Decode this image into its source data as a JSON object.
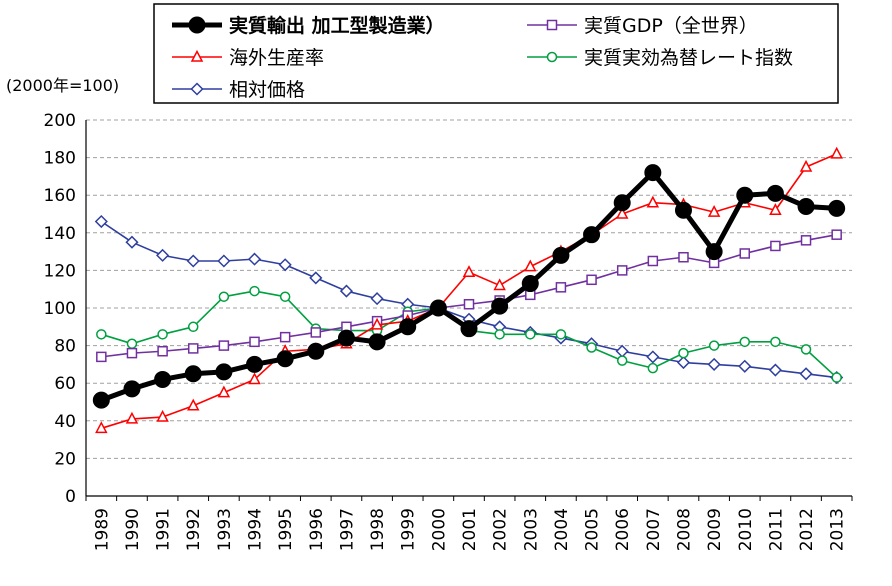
{
  "chart_data": {
    "type": "line",
    "unit_label": "(2000年=100)",
    "x": [
      "1989",
      "1990",
      "1991",
      "1992",
      "1993",
      "1994",
      "1995",
      "1996",
      "1997",
      "1998",
      "1999",
      "2000",
      "2001",
      "2002",
      "2003",
      "2004",
      "2005",
      "2006",
      "2007",
      "2008",
      "2009",
      "2010",
      "2011",
      "2012",
      "2013"
    ],
    "ylim": [
      0,
      200
    ],
    "yticks": [
      0,
      20,
      40,
      60,
      80,
      100,
      120,
      140,
      160,
      180,
      200
    ],
    "grid": "horizontal-dashed",
    "legend_position": "top",
    "series": [
      {
        "key": "export",
        "name": "実質輸出 加工型製造業）",
        "color": "#000000",
        "marker": "circle",
        "bold": true,
        "values": [
          51,
          57,
          62,
          65,
          66,
          70,
          73,
          77,
          84,
          82,
          90,
          100,
          89,
          101,
          113,
          128,
          139,
          156,
          172,
          152,
          130,
          160,
          161,
          154,
          153
        ]
      },
      {
        "key": "gdp",
        "name": "実質GDP（全世界）",
        "color": "#7030a0",
        "marker": "square",
        "values": [
          74,
          76,
          77,
          78.5,
          80,
          82,
          84.5,
          87,
          90,
          93,
          96,
          100,
          102,
          104,
          107,
          111,
          115,
          120,
          125,
          127,
          124,
          129,
          133,
          136,
          139
        ]
      },
      {
        "key": "overseas",
        "name": "海外生産率",
        "color": "#ff0000",
        "marker": "triangle",
        "values": [
          36,
          41,
          42,
          48,
          55,
          62,
          77,
          78,
          81,
          91,
          93,
          100,
          119,
          112,
          122,
          130,
          139,
          150,
          156,
          155,
          151,
          156,
          152,
          175,
          182
        ]
      },
      {
        "key": "reer",
        "name": "実質実効為替レート指数",
        "color": "#00a040",
        "marker": "open-circle",
        "values": [
          86,
          81,
          86,
          90,
          106,
          109,
          106,
          89,
          88,
          88,
          98,
          100,
          88,
          86,
          86,
          86,
          79,
          72,
          68,
          76,
          80,
          82,
          82,
          78,
          63
        ]
      },
      {
        "key": "relprice",
        "name": "相対価格",
        "color": "#2f3f9f",
        "marker": "diamond",
        "values": [
          146,
          135,
          128,
          125,
          125,
          126,
          123,
          116,
          109,
          105,
          102,
          100,
          94,
          90,
          87,
          84,
          81,
          77,
          74,
          71,
          70,
          69,
          67,
          65,
          63
        ]
      }
    ]
  }
}
